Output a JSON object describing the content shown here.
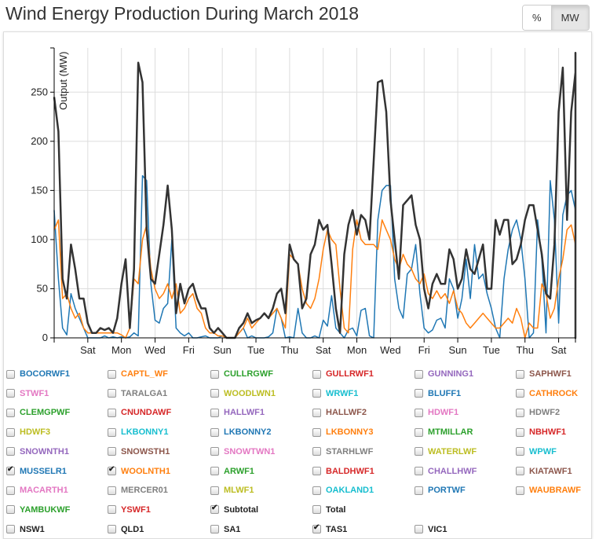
{
  "header": {
    "title": "Wind Energy Production During March 2018",
    "toggle": [
      {
        "label": "%",
        "active": false
      },
      {
        "label": "MW",
        "active": true
      }
    ]
  },
  "chart_data": {
    "type": "line",
    "title": "Wind Energy Production During March 2018",
    "ylabel": "Output (MW)",
    "xlabel": "",
    "ylim": [
      0,
      295
    ],
    "xlim_days": [
      0,
      31
    ],
    "yticks": [
      0,
      50,
      100,
      150,
      200,
      250
    ],
    "xticks": [
      {
        "day": 2,
        "label": "Sat"
      },
      {
        "day": 4,
        "label": "Mon"
      },
      {
        "day": 6,
        "label": "Wed"
      },
      {
        "day": 8,
        "label": "Fri"
      },
      {
        "day": 10,
        "label": "Sun"
      },
      {
        "day": 12,
        "label": "Tue"
      },
      {
        "day": 14,
        "label": "Thu"
      },
      {
        "day": 16,
        "label": "Sat"
      },
      {
        "day": 18,
        "label": "Mon"
      },
      {
        "day": 20,
        "label": "Wed"
      },
      {
        "day": 22,
        "label": "Fri"
      },
      {
        "day": 24,
        "label": "Sun"
      },
      {
        "day": 26,
        "label": "Tue"
      },
      {
        "day": 28,
        "label": "Thu"
      },
      {
        "day": 30,
        "label": "Sat"
      }
    ],
    "grid": true,
    "step_days": 0.25,
    "series": [
      {
        "name": "MUSSELR1",
        "color": "#1f77b4",
        "values": [
          130,
          60,
          10,
          3,
          45,
          30,
          20,
          10,
          0,
          0,
          0,
          0,
          2,
          0,
          1,
          0,
          1,
          0,
          1,
          5,
          2,
          165,
          160,
          55,
          18,
          15,
          30,
          35,
          100,
          10,
          5,
          2,
          5,
          0,
          0,
          1,
          2,
          0,
          0,
          0,
          2,
          0,
          0,
          0,
          5,
          10,
          0,
          2,
          0,
          0,
          0,
          1,
          5,
          30,
          20,
          0,
          1,
          0,
          30,
          5,
          0,
          0,
          2,
          0,
          18,
          12,
          43,
          10,
          5,
          0,
          8,
          10,
          2,
          28,
          30,
          2,
          0,
          120,
          150,
          155,
          155,
          60,
          30,
          20,
          65,
          70,
          95,
          45,
          10,
          5,
          8,
          18,
          20,
          10,
          60,
          50,
          20,
          40,
          80,
          40,
          95,
          60,
          65,
          45,
          30,
          10,
          0,
          60,
          90,
          110,
          120,
          100,
          60,
          0,
          5,
          120,
          80,
          5,
          160,
          120,
          15,
          125,
          145,
          150,
          130,
          5,
          0,
          10,
          0,
          150,
          155,
          130,
          120,
          5,
          80,
          150,
          140,
          30,
          10,
          70,
          50,
          5,
          20,
          60,
          150,
          140,
          130,
          150,
          70,
          40,
          100,
          130,
          125,
          140,
          135,
          110,
          80,
          90,
          90,
          60,
          50,
          50,
          40,
          10,
          5,
          0,
          5,
          25,
          60,
          70,
          10,
          0,
          150,
          160,
          160,
          30,
          160,
          160,
          165,
          150,
          50,
          5,
          5,
          20,
          15,
          0,
          0,
          0,
          10,
          0,
          75,
          0,
          60,
          80,
          70,
          90,
          105,
          100,
          110,
          100,
          80,
          100,
          120,
          140,
          150,
          155,
          150,
          160,
          120,
          60,
          20,
          5,
          10,
          25,
          35
        ]
      },
      {
        "name": "WOOLNTH1",
        "color": "#ff7f0e",
        "values": [
          110,
          120,
          40,
          45,
          30,
          20,
          25,
          10,
          5,
          5,
          5,
          5,
          5,
          5,
          5,
          5,
          3,
          0,
          10,
          60,
          55,
          100,
          115,
          70,
          50,
          40,
          45,
          55,
          40,
          55,
          25,
          30,
          40,
          45,
          30,
          25,
          10,
          5,
          5,
          2,
          2,
          0,
          0,
          0,
          5,
          10,
          20,
          10,
          15,
          20,
          25,
          20,
          25,
          30,
          20,
          10,
          85,
          80,
          75,
          50,
          35,
          30,
          40,
          60,
          90,
          110,
          100,
          95,
          50,
          10,
          5,
          90,
          120,
          100,
          95,
          95,
          95,
          90,
          120,
          110,
          100,
          80,
          70,
          85,
          75,
          70,
          60,
          55,
          65,
          45,
          40,
          48,
          40,
          45,
          35,
          48,
          30,
          25,
          15,
          10,
          15,
          20,
          25,
          20,
          15,
          10,
          10,
          15,
          20,
          15,
          30,
          20,
          0,
          15,
          10,
          10,
          55,
          45,
          20,
          30,
          60,
          80,
          110,
          115,
          95,
          100,
          120,
          110,
          70,
          100,
          110,
          120,
          115,
          85,
          120,
          110,
          115,
          125,
          120,
          115,
          80,
          95,
          120,
          115,
          120,
          110,
          100,
          60,
          40,
          45,
          70,
          60,
          45,
          55,
          75,
          60,
          80,
          110,
          120,
          130,
          128,
          125,
          120,
          125,
          118,
          115,
          112,
          105,
          100,
          45,
          30,
          25,
          15,
          25,
          5,
          0,
          50,
          110,
          115,
          118,
          120,
          110,
          30,
          110,
          115,
          105,
          85,
          60,
          20,
          10,
          5,
          0,
          15,
          25,
          40,
          55,
          45,
          40,
          40,
          45,
          30,
          55,
          55,
          70,
          95,
          75,
          110,
          115,
          125,
          90,
          125,
          90,
          100,
          60,
          15,
          5,
          0,
          5,
          20
        ]
      },
      {
        "name": "Subtotal",
        "color": "#333333",
        "values": [
          245,
          210,
          60,
          40,
          95,
          70,
          40,
          40,
          15,
          5,
          5,
          10,
          8,
          10,
          5,
          20,
          55,
          80,
          10,
          70,
          280,
          260,
          110,
          60,
          55,
          85,
          115,
          155,
          110,
          25,
          55,
          35,
          50,
          55,
          40,
          30,
          30,
          10,
          5,
          10,
          5,
          0,
          0,
          0,
          10,
          15,
          25,
          15,
          18,
          20,
          25,
          20,
          30,
          45,
          50,
          25,
          95,
          80,
          75,
          30,
          40,
          85,
          95,
          120,
          110,
          115,
          75,
          30,
          5,
          85,
          115,
          130,
          105,
          125,
          120,
          100,
          180,
          260,
          262,
          230,
          140,
          100,
          60,
          135,
          140,
          145,
          115,
          100,
          50,
          30,
          55,
          65,
          55,
          55,
          90,
          80,
          50,
          60,
          90,
          70,
          65,
          80,
          95,
          50,
          50,
          120,
          105,
          120,
          120,
          75,
          80,
          95,
          120,
          135,
          135,
          110,
          85,
          45,
          40,
          95,
          230,
          275,
          120,
          230,
          270,
          290,
          250,
          100,
          60,
          120,
          220,
          290,
          260,
          220,
          80,
          75,
          60,
          95,
          135,
          80,
          100,
          60,
          230,
          275,
          275,
          260,
          250,
          225,
          240,
          270,
          260,
          240,
          270,
          265,
          265,
          250,
          190,
          200,
          170,
          130,
          120,
          115,
          110,
          90,
          50,
          25,
          40,
          70,
          60,
          30,
          10,
          270,
          285,
          280,
          290,
          180,
          290,
          280,
          190,
          120,
          230,
          280,
          285,
          270,
          160,
          50,
          30,
          35,
          50,
          45,
          35,
          80,
          60,
          110,
          120,
          125,
          145,
          155,
          165,
          185,
          195,
          215,
          245,
          250,
          260,
          290,
          255,
          260,
          240,
          250,
          170,
          40,
          0,
          10,
          50,
          40,
          55
        ]
      }
    ]
  },
  "legend": {
    "rows": [
      [
        {
          "label": "BOCORWF1",
          "color": "#1f77b4",
          "checked": false
        },
        {
          "label": "CAPTL_WF",
          "color": "#ff7f0e",
          "checked": false
        },
        {
          "label": "CULLRGWF",
          "color": "#2ca02c",
          "checked": false
        },
        {
          "label": "GULLRWF1",
          "color": "#d62728",
          "checked": false
        },
        {
          "label": "GUNNING1",
          "color": "#9467bd",
          "checked": false
        },
        {
          "label": "SAPHWF1",
          "color": "#8c564b",
          "checked": false
        }
      ],
      [
        {
          "label": "STWF1",
          "color": "#e377c2",
          "checked": false
        },
        {
          "label": "TARALGA1",
          "color": "#7f7f7f",
          "checked": false
        },
        {
          "label": "WOODLWN1",
          "color": "#bcbd22",
          "checked": false
        },
        {
          "label": "WRWF1",
          "color": "#17becf",
          "checked": false
        },
        {
          "label": "BLUFF1",
          "color": "#1f77b4",
          "checked": false
        },
        {
          "label": "CATHROCK",
          "color": "#ff7f0e",
          "checked": false
        }
      ],
      [
        {
          "label": "CLEMGPWF",
          "color": "#2ca02c",
          "checked": false
        },
        {
          "label": "CNUNDAWF",
          "color": "#d62728",
          "checked": false
        },
        {
          "label": "HALLWF1",
          "color": "#9467bd",
          "checked": false
        },
        {
          "label": "HALLWF2",
          "color": "#8c564b",
          "checked": false
        },
        {
          "label": "HDWF1",
          "color": "#e377c2",
          "checked": false
        },
        {
          "label": "HDWF2",
          "color": "#7f7f7f",
          "checked": false
        }
      ],
      [
        {
          "label": "HDWF3",
          "color": "#bcbd22",
          "checked": false
        },
        {
          "label": "LKBONNY1",
          "color": "#17becf",
          "checked": false
        },
        {
          "label": "LKBONNY2",
          "color": "#1f77b4",
          "checked": false
        },
        {
          "label": "LKBONNY3",
          "color": "#ff7f0e",
          "checked": false
        },
        {
          "label": "MTMILLAR",
          "color": "#2ca02c",
          "checked": false
        },
        {
          "label": "NBHWF1",
          "color": "#d62728",
          "checked": false
        }
      ],
      [
        {
          "label": "SNOWNTH1",
          "color": "#9467bd",
          "checked": false
        },
        {
          "label": "SNOWSTH1",
          "color": "#8c564b",
          "checked": false
        },
        {
          "label": "SNOWTWN1",
          "color": "#e377c2",
          "checked": false
        },
        {
          "label": "STARHLWF",
          "color": "#7f7f7f",
          "checked": false
        },
        {
          "label": "WATERLWF",
          "color": "#bcbd22",
          "checked": false
        },
        {
          "label": "WPWF",
          "color": "#17becf",
          "checked": false
        }
      ],
      [
        {
          "label": "MUSSELR1",
          "color": "#1f77b4",
          "checked": true
        },
        {
          "label": "WOOLNTH1",
          "color": "#ff7f0e",
          "checked": true
        },
        {
          "label": "ARWF1",
          "color": "#2ca02c",
          "checked": false
        },
        {
          "label": "BALDHWF1",
          "color": "#d62728",
          "checked": false
        },
        {
          "label": "CHALLHWF",
          "color": "#9467bd",
          "checked": false
        },
        {
          "label": "KIATAWF1",
          "color": "#8c564b",
          "checked": false
        }
      ],
      [
        {
          "label": "MACARTH1",
          "color": "#e377c2",
          "checked": false
        },
        {
          "label": "MERCER01",
          "color": "#7f7f7f",
          "checked": false
        },
        {
          "label": "MLWF1",
          "color": "#bcbd22",
          "checked": false
        },
        {
          "label": "OAKLAND1",
          "color": "#17becf",
          "checked": false
        },
        {
          "label": "PORTWF",
          "color": "#1f77b4",
          "checked": false
        },
        {
          "label": "WAUBRAWF",
          "color": "#ff7f0e",
          "checked": false
        }
      ],
      [
        {
          "label": "YAMBUKWF",
          "color": "#2ca02c",
          "checked": false
        },
        {
          "label": "YSWF1",
          "color": "#d62728",
          "checked": false
        },
        {
          "label": "Subtotal",
          "color": "#222222",
          "checked": true
        },
        {
          "label": "Total",
          "color": "#222222",
          "checked": false
        }
      ],
      [
        {
          "label": "NSW1",
          "color": "#222222",
          "checked": false
        },
        {
          "label": "QLD1",
          "color": "#222222",
          "checked": false
        },
        {
          "label": "SA1",
          "color": "#222222",
          "checked": false
        },
        {
          "label": "TAS1",
          "color": "#222222",
          "checked": true
        },
        {
          "label": "VIC1",
          "color": "#222222",
          "checked": false
        }
      ]
    ]
  }
}
